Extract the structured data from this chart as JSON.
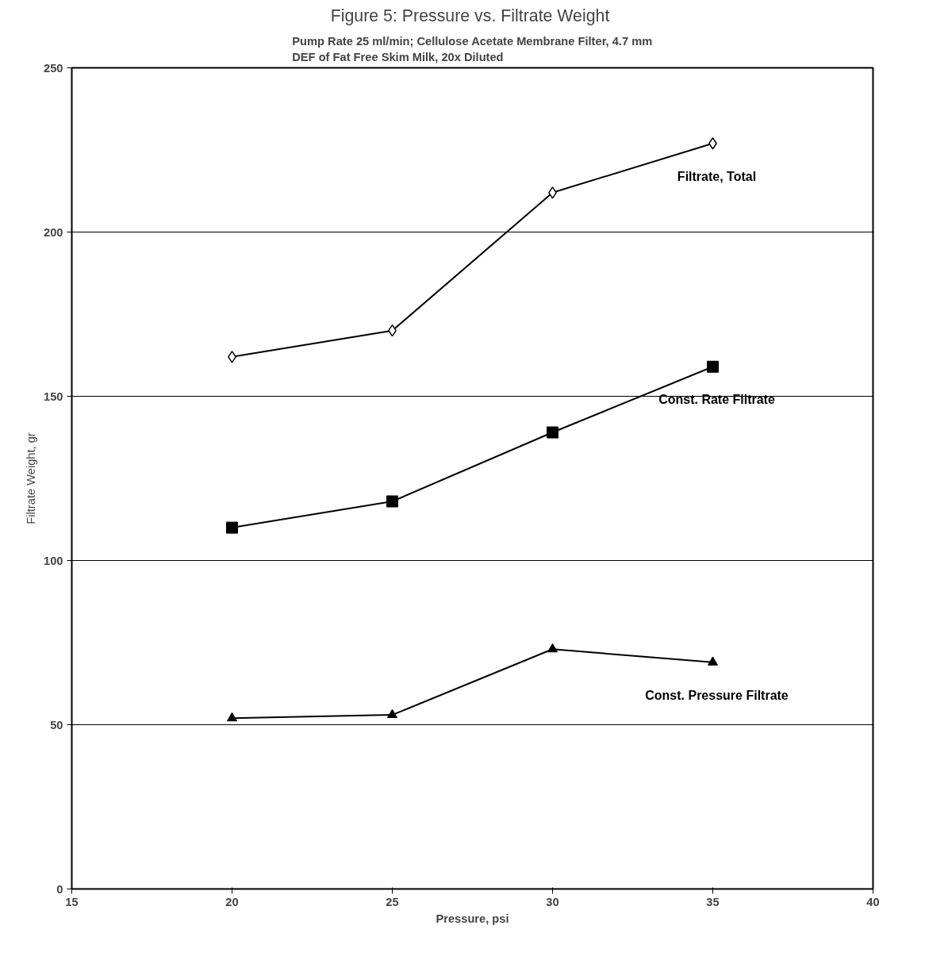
{
  "chart_data": {
    "type": "line",
    "title": "Figure 5:  Pressure vs. Filtrate Weight",
    "subtitle": "Pump Rate 25 ml/min; Cellulose Acetate Membrane Filter, 4.7 mm\nDEF of Fat Free Skim Milk, 20x Diluted",
    "xlabel": "Pressure, psi",
    "ylabel": "Filtrate Weight, gr",
    "x": [
      20,
      25,
      30,
      35
    ],
    "series": [
      {
        "name": "Filtrate, Total",
        "color": "#000000",
        "marker": "diamond",
        "values": [
          162,
          170,
          212,
          227
        ]
      },
      {
        "name": "Const. Rate Filtrate",
        "color": "#000000",
        "marker": "square",
        "values": [
          110,
          118,
          139,
          159
        ]
      },
      {
        "name": "Const. Pressure Filtrate",
        "color": "#000000",
        "marker": "triangle",
        "values": [
          52,
          53,
          73,
          69
        ]
      }
    ],
    "xlim": [
      15,
      40
    ],
    "xticks": [
      15,
      20,
      25,
      30,
      35,
      40
    ],
    "ylim": [
      0,
      250
    ],
    "yticks": [
      0,
      50,
      100,
      150,
      200,
      250
    ],
    "grid": "y",
    "line_style": "solid"
  }
}
